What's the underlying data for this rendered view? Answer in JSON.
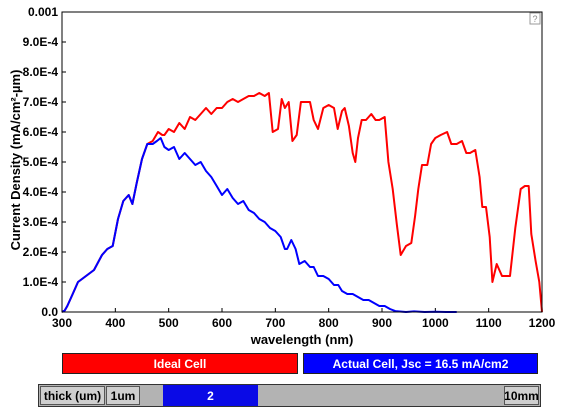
{
  "chart_data": {
    "type": "line",
    "xlabel": "wavelength (nm)",
    "ylabel": "Current Density (mA/cm²-µm)",
    "xlim": [
      300,
      1200
    ],
    "ylim": [
      0,
      0.001
    ],
    "x_ticks": [
      "300",
      "400",
      "500",
      "600",
      "700",
      "800",
      "900",
      "1000",
      "1100",
      "1200"
    ],
    "y_ticks": [
      "0.0",
      "1.0E-4",
      "2.0E-4",
      "3.0E-4",
      "4.0E-4",
      "5.0E-4",
      "6.0E-4",
      "7.0E-4",
      "8.0E-4",
      "9.0E-4",
      "0.001"
    ],
    "grid": false,
    "series": [
      {
        "name": "Ideal Cell",
        "color": "#ff0000",
        "points": [
          [
            300,
            0
          ],
          [
            305,
            5e-06
          ],
          [
            310,
            2e-05
          ],
          [
            320,
            6e-05
          ],
          [
            330,
            0.0001
          ],
          [
            345,
            0.00012
          ],
          [
            360,
            0.00014
          ],
          [
            375,
            0.00019
          ],
          [
            385,
            0.00021
          ],
          [
            395,
            0.00022
          ],
          [
            405,
            0.00031
          ],
          [
            415,
            0.00037
          ],
          [
            425,
            0.00039
          ],
          [
            432,
            0.00036
          ],
          [
            440,
            0.00043
          ],
          [
            450,
            0.00051
          ],
          [
            460,
            0.00056
          ],
          [
            470,
            0.00057
          ],
          [
            480,
            0.0006
          ],
          [
            488,
            0.00059
          ],
          [
            492,
            0.00059
          ],
          [
            500,
            0.00061
          ],
          [
            510,
            0.0006
          ],
          [
            520,
            0.00063
          ],
          [
            530,
            0.00061
          ],
          [
            540,
            0.00065
          ],
          [
            550,
            0.00064
          ],
          [
            560,
            0.00066
          ],
          [
            570,
            0.00068
          ],
          [
            580,
            0.00066
          ],
          [
            590,
            0.00068
          ],
          [
            600,
            0.00068
          ],
          [
            610,
            0.0007
          ],
          [
            620,
            0.00071
          ],
          [
            630,
            0.0007
          ],
          [
            640,
            0.00071
          ],
          [
            650,
            0.00072
          ],
          [
            660,
            0.00072
          ],
          [
            670,
            0.00073
          ],
          [
            680,
            0.00072
          ],
          [
            688,
            0.00073
          ],
          [
            695,
            0.0006
          ],
          [
            705,
            0.00061
          ],
          [
            712,
            0.00071
          ],
          [
            718,
            0.00068
          ],
          [
            725,
            0.0007
          ],
          [
            732,
            0.00057
          ],
          [
            740,
            0.00059
          ],
          [
            748,
            0.0007
          ],
          [
            755,
            0.0007
          ],
          [
            765,
            0.0007
          ],
          [
            772,
            0.00064
          ],
          [
            780,
            0.00061
          ],
          [
            790,
            0.00068
          ],
          [
            800,
            0.00069
          ],
          [
            810,
            0.00068
          ],
          [
            817,
            0.00061
          ],
          [
            825,
            0.00067
          ],
          [
            830,
            0.00068
          ],
          [
            838,
            0.00062
          ],
          [
            845,
            0.00053
          ],
          [
            850,
            0.0005
          ],
          [
            855,
            0.00058
          ],
          [
            862,
            0.00064
          ],
          [
            870,
            0.00064
          ],
          [
            880,
            0.00066
          ],
          [
            888,
            0.00064
          ],
          [
            895,
            0.00064
          ],
          [
            905,
            0.00065
          ],
          [
            912,
            0.0005
          ],
          [
            920,
            0.00041
          ],
          [
            928,
            0.00029
          ],
          [
            935,
            0.00019
          ],
          [
            945,
            0.00022
          ],
          [
            955,
            0.00023
          ],
          [
            962,
            0.00032
          ],
          [
            968,
            0.00041
          ],
          [
            975,
            0.00049
          ],
          [
            985,
            0.00049
          ],
          [
            992,
            0.00056
          ],
          [
            1000,
            0.00058
          ],
          [
            1010,
            0.00059
          ],
          [
            1022,
            0.0006
          ],
          [
            1030,
            0.00056
          ],
          [
            1040,
            0.00056
          ],
          [
            1050,
            0.00057
          ],
          [
            1058,
            0.00053
          ],
          [
            1065,
            0.00053
          ],
          [
            1075,
            0.00054
          ],
          [
            1083,
            0.00045
          ],
          [
            1088,
            0.00035
          ],
          [
            1095,
            0.00035
          ],
          [
            1102,
            0.00025
          ],
          [
            1107,
            0.0001
          ],
          [
            1115,
            0.00016
          ],
          [
            1125,
            0.00012
          ],
          [
            1140,
            0.00012
          ],
          [
            1150,
            0.00028
          ],
          [
            1160,
            0.00041
          ],
          [
            1168,
            0.00042
          ],
          [
            1175,
            0.00042
          ],
          [
            1180,
            0.00026
          ],
          [
            1188,
            0.00017
          ],
          [
            1195,
            0.0001
          ],
          [
            1200,
            0
          ]
        ]
      },
      {
        "name": "Actual Cell, Jsc = 16.5 mA/cm2",
        "color": "#0000ff",
        "points": [
          [
            300,
            0
          ],
          [
            305,
            5e-06
          ],
          [
            310,
            2e-05
          ],
          [
            320,
            6e-05
          ],
          [
            330,
            0.0001
          ],
          [
            345,
            0.00012
          ],
          [
            360,
            0.00014
          ],
          [
            375,
            0.00019
          ],
          [
            385,
            0.00021
          ],
          [
            395,
            0.00022
          ],
          [
            405,
            0.00031
          ],
          [
            415,
            0.00037
          ],
          [
            425,
            0.00039
          ],
          [
            432,
            0.00036
          ],
          [
            440,
            0.00043
          ],
          [
            450,
            0.00051
          ],
          [
            460,
            0.00056
          ],
          [
            470,
            0.00056
          ],
          [
            478,
            0.00057
          ],
          [
            485,
            0.00058
          ],
          [
            492,
            0.00055
          ],
          [
            500,
            0.00054
          ],
          [
            510,
            0.00055
          ],
          [
            520,
            0.00051
          ],
          [
            530,
            0.00053
          ],
          [
            540,
            0.00051
          ],
          [
            550,
            0.00049
          ],
          [
            560,
            0.0005
          ],
          [
            570,
            0.00047
          ],
          [
            580,
            0.00045
          ],
          [
            590,
            0.00042
          ],
          [
            600,
            0.00039
          ],
          [
            610,
            0.00041
          ],
          [
            620,
            0.00038
          ],
          [
            630,
            0.00036
          ],
          [
            640,
            0.00037
          ],
          [
            650,
            0.00034
          ],
          [
            660,
            0.00033
          ],
          [
            670,
            0.00031
          ],
          [
            680,
            0.0003
          ],
          [
            690,
            0.00028
          ],
          [
            700,
            0.00027
          ],
          [
            710,
            0.00025
          ],
          [
            718,
            0.00021
          ],
          [
            722,
            0.00021
          ],
          [
            730,
            0.00024
          ],
          [
            738,
            0.00021
          ],
          [
            745,
            0.00016
          ],
          [
            755,
            0.00017
          ],
          [
            765,
            0.00015
          ],
          [
            772,
            0.00015
          ],
          [
            780,
            0.00012
          ],
          [
            790,
            0.00012
          ],
          [
            800,
            0.00011
          ],
          [
            810,
            9e-05
          ],
          [
            818,
            9e-05
          ],
          [
            825,
            7e-05
          ],
          [
            835,
            6e-05
          ],
          [
            845,
            6e-05
          ],
          [
            855,
            5e-05
          ],
          [
            865,
            4e-05
          ],
          [
            875,
            4e-05
          ],
          [
            885,
            3e-05
          ],
          [
            895,
            2e-05
          ],
          [
            905,
            2e-05
          ],
          [
            915,
            1e-05
          ],
          [
            925,
            3e-06
          ],
          [
            945,
            0
          ],
          [
            960,
            2e-06
          ],
          [
            980,
            0
          ],
          [
            1000,
            1e-06
          ],
          [
            1020,
            0
          ],
          [
            1040,
            0
          ]
        ]
      }
    ]
  },
  "help": {
    "label": "?"
  },
  "legend": {
    "ideal": {
      "label": "Ideal Cell",
      "color": "#ff0000"
    },
    "actual": {
      "label": "Actual Cell, Jsc = 16.5 mA/cm2",
      "color": "#0000ff"
    }
  },
  "thickness_control": {
    "label": "thick (um)",
    "min_label": "1um",
    "max_label": "10mm",
    "value_label": "2",
    "track_color": "#b3b3b3",
    "thumb_color": "#0a0ae6"
  }
}
